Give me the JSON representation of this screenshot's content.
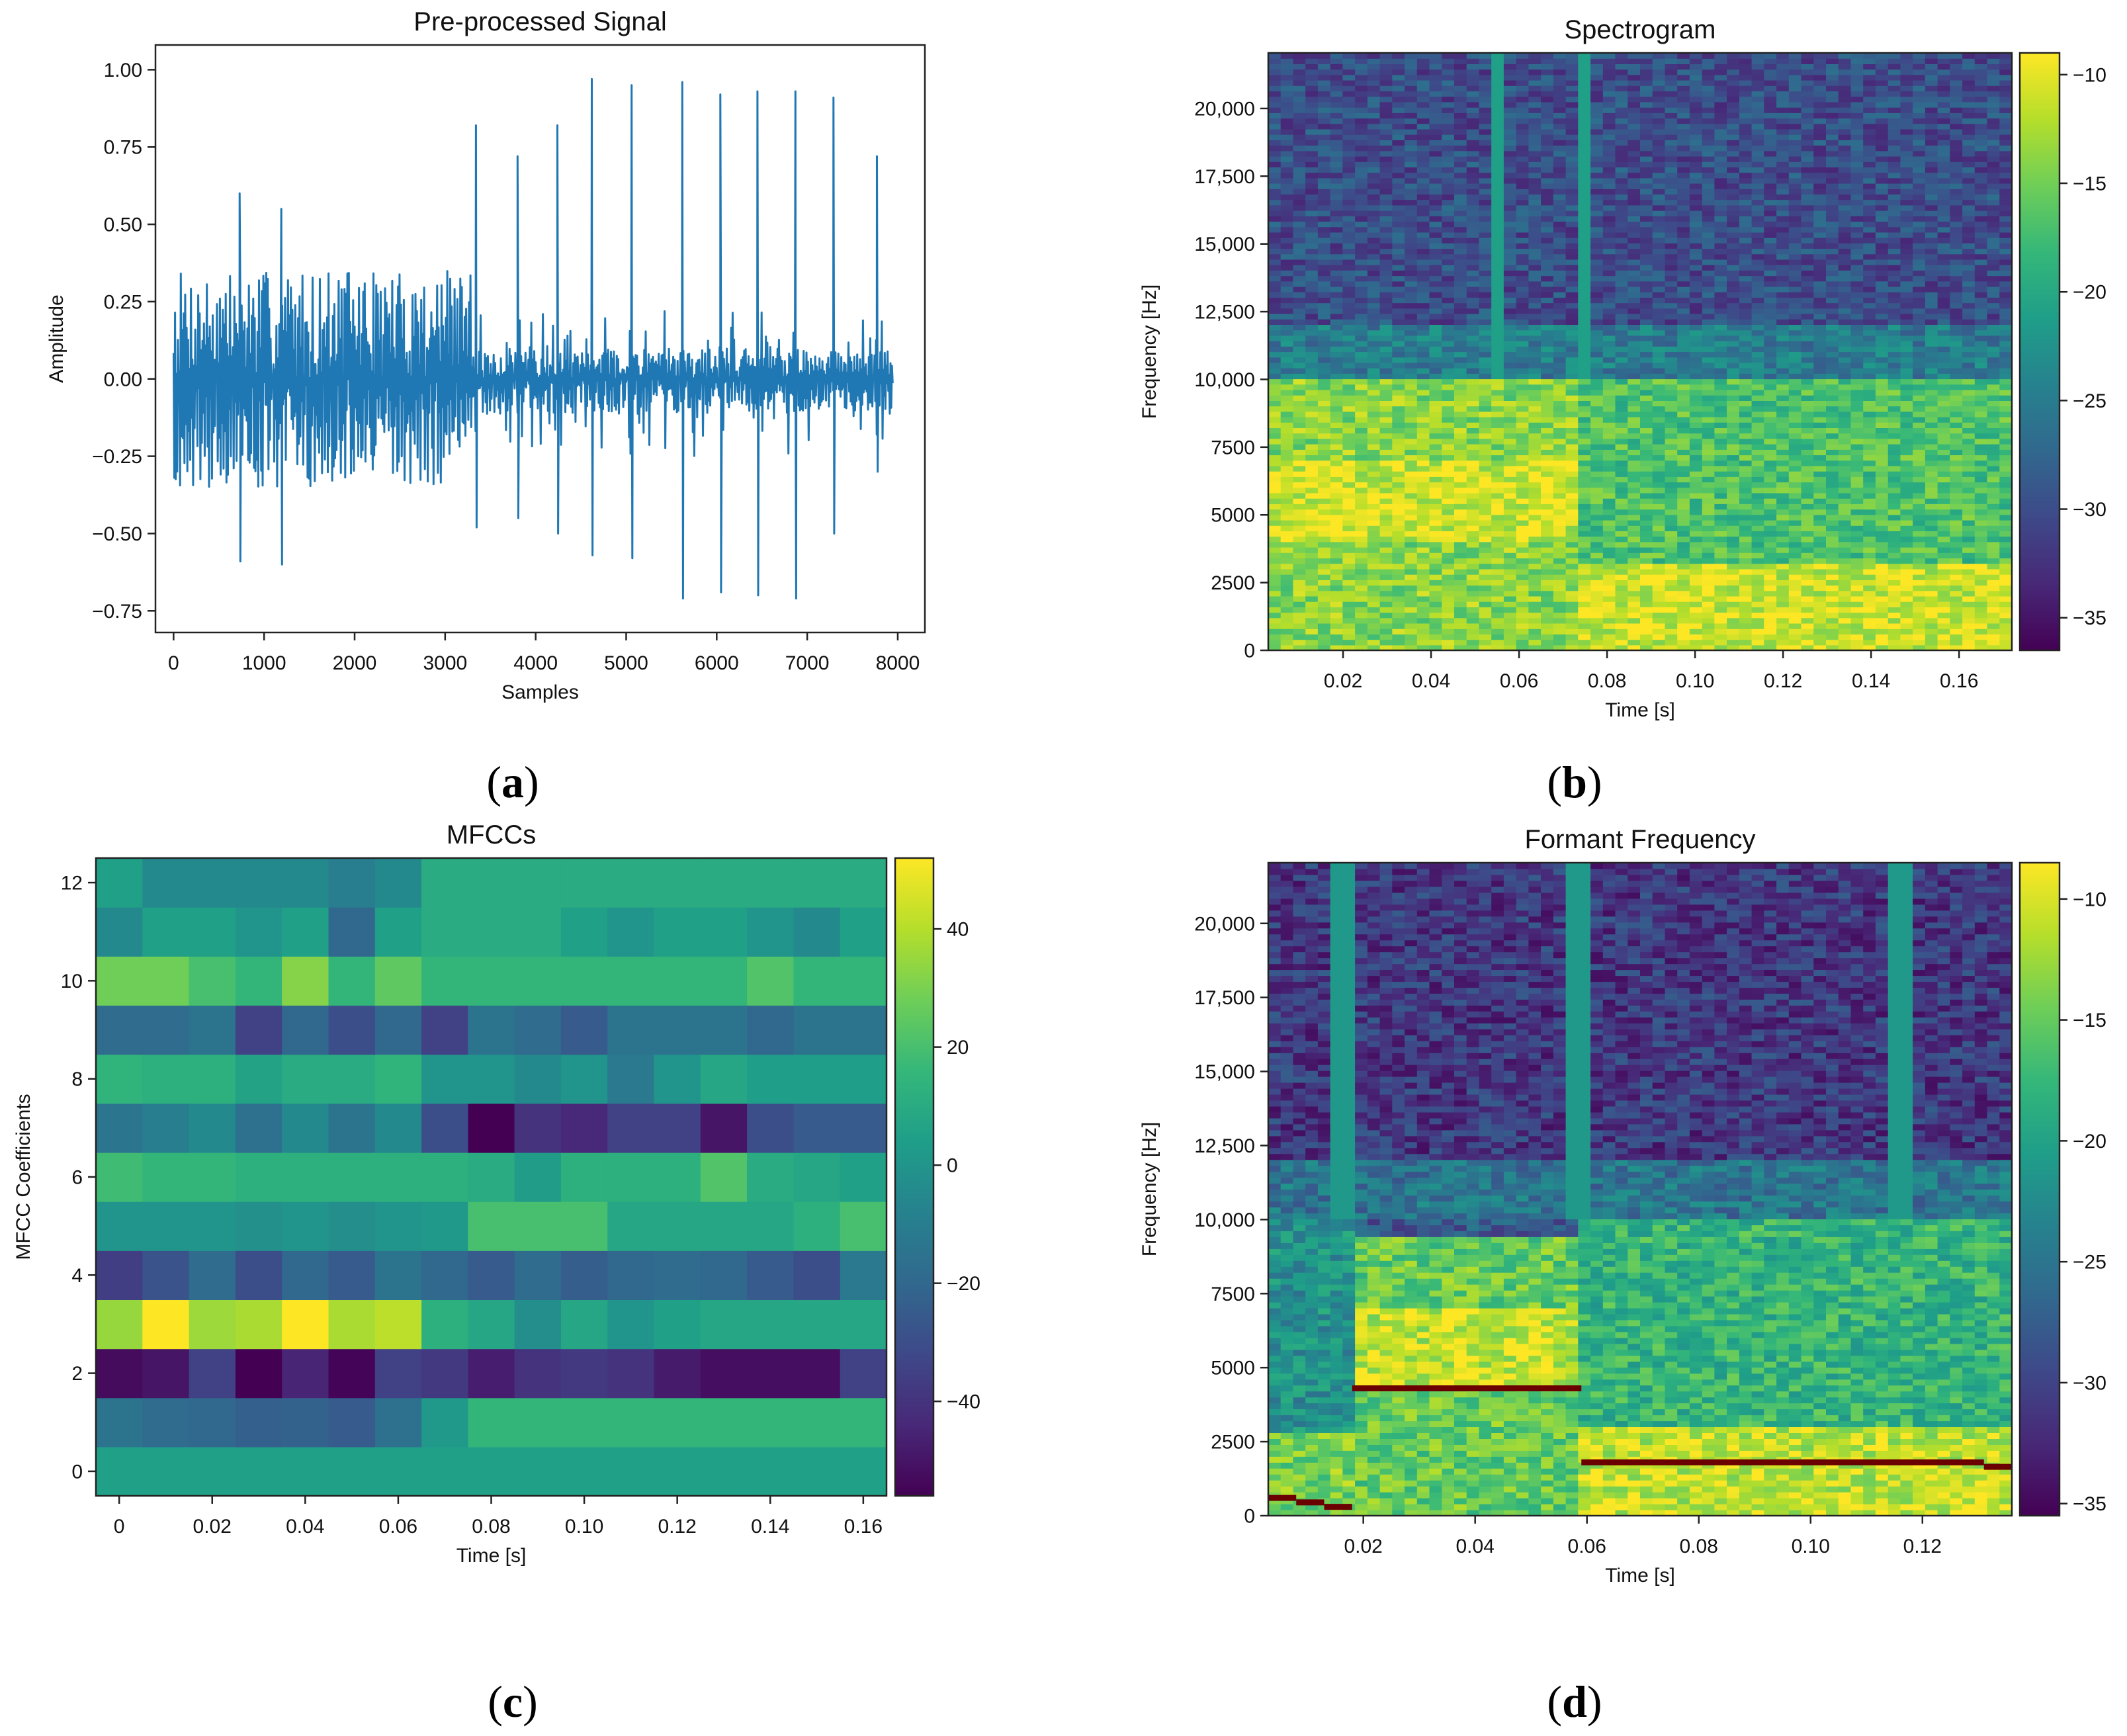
{
  "panels": {
    "a": {
      "caption": "(a)",
      "letter": "a"
    },
    "b": {
      "caption": "(b)",
      "letter": "b"
    },
    "c": {
      "caption": "(c)",
      "letter": "c"
    },
    "d": {
      "caption": "(d)",
      "letter": "d"
    }
  },
  "colors": {
    "line": "#1f77b4",
    "formant": "#6b0000",
    "viridis": [
      "#440154",
      "#482878",
      "#3e4989",
      "#31688e",
      "#26828e",
      "#1f9e89",
      "#35b779",
      "#6ece58",
      "#b5de2b",
      "#fde725"
    ]
  },
  "chart_data": [
    {
      "id": "a",
      "type": "line",
      "title": "Pre-processed Signal",
      "xlabel": "Samples",
      "ylabel": "Amplitude",
      "xlim": [
        -200,
        8300
      ],
      "ylim": [
        -0.82,
        1.08
      ],
      "xticks": [
        0,
        1000,
        2000,
        3000,
        4000,
        5000,
        6000,
        7000,
        8000
      ],
      "xtick_labels": [
        "0",
        "1000",
        "2000",
        "3000",
        "4000",
        "5000",
        "6000",
        "7000",
        "8000"
      ],
      "yticks": [
        -0.75,
        -0.5,
        -0.25,
        0.0,
        0.25,
        0.5,
        0.75,
        1.0
      ],
      "ytick_labels": [
        "−0.75",
        "−0.50",
        "−0.25",
        "0.00",
        "0.25",
        "0.50",
        "0.75",
        "1.00"
      ],
      "series": [
        {
          "name": "signal",
          "noise_segments": [
            {
              "x_start": 0,
              "x_end": 3300,
              "amplitude_max": 0.35,
              "amplitude_min": -0.35
            },
            {
              "x_start": 3300,
              "x_end": 7950,
              "amplitude_max": 0.22,
              "amplitude_min": -0.25
            }
          ],
          "peaks": [
            {
              "x": 730,
              "value": 0.6
            },
            {
              "x": 1190,
              "value": 0.55
            },
            {
              "x": 3340,
              "value": 0.82
            },
            {
              "x": 3800,
              "value": 0.72
            },
            {
              "x": 4240,
              "value": 0.82
            },
            {
              "x": 4620,
              "value": 0.97
            },
            {
              "x": 5060,
              "value": 0.95
            },
            {
              "x": 5620,
              "value": 0.96
            },
            {
              "x": 6040,
              "value": 0.92
            },
            {
              "x": 6450,
              "value": 0.93
            },
            {
              "x": 6870,
              "value": 0.93
            },
            {
              "x": 7290,
              "value": 0.91
            },
            {
              "x": 7770,
              "value": 0.72
            }
          ],
          "troughs": [
            {
              "x": 730,
              "value": -0.59
            },
            {
              "x": 1190,
              "value": -0.6
            },
            {
              "x": 3340,
              "value": -0.48
            },
            {
              "x": 3800,
              "value": -0.45
            },
            {
              "x": 4240,
              "value": -0.5
            },
            {
              "x": 4620,
              "value": -0.57
            },
            {
              "x": 5060,
              "value": -0.58
            },
            {
              "x": 5620,
              "value": -0.71
            },
            {
              "x": 6040,
              "value": -0.69
            },
            {
              "x": 6450,
              "value": -0.7
            },
            {
              "x": 6870,
              "value": -0.71
            },
            {
              "x": 7290,
              "value": -0.5
            },
            {
              "x": 7770,
              "value": -0.3
            }
          ]
        }
      ]
    },
    {
      "id": "b",
      "type": "heatmap",
      "title": "Spectrogram",
      "xlabel": "Time [s]",
      "ylabel": "Frequency [Hz]",
      "xlim": [
        0.003,
        0.172
      ],
      "ylim": [
        0,
        22050
      ],
      "xticks": [
        0.02,
        0.04,
        0.06,
        0.08,
        0.1,
        0.12,
        0.14,
        0.16
      ],
      "xtick_labels": [
        "0.02",
        "0.04",
        "0.06",
        "0.08",
        "0.10",
        "0.12",
        "0.14",
        "0.16"
      ],
      "yticks": [
        0,
        2500,
        5000,
        7500,
        10000,
        12500,
        15000,
        17500,
        20000
      ],
      "ytick_labels": [
        "0",
        "2500",
        "5000",
        "7500",
        "10,000",
        "12,500",
        "15,000",
        "17,500",
        "20,000"
      ],
      "colorbar": {
        "min": -36.5,
        "max": -9,
        "ticks": [
          -10,
          -15,
          -20,
          -25,
          -30,
          -35
        ],
        "tick_labels": [
          "−10",
          "−15",
          "−20",
          "−25",
          "−30",
          "−35"
        ]
      },
      "regions": [
        {
          "t_start": 0.003,
          "t_end": 0.073,
          "f_start": 0,
          "f_end": 10000,
          "value_db": -14
        },
        {
          "t_start": 0.003,
          "t_end": 0.073,
          "f_start": 4000,
          "f_end": 7000,
          "value_db": -11
        },
        {
          "t_start": 0.073,
          "t_end": 0.172,
          "f_start": 0,
          "f_end": 3200,
          "value_db": -11
        },
        {
          "t_start": 0.073,
          "t_end": 0.172,
          "f_start": 3200,
          "f_end": 10000,
          "value_db": -17
        },
        {
          "t_start": 0.003,
          "t_end": 0.172,
          "f_start": 10000,
          "f_end": 12000,
          "value_db": -25
        },
        {
          "t_start": 0.003,
          "t_end": 0.172,
          "f_start": 12000,
          "f_end": 22050,
          "value_db": -30
        }
      ],
      "vertical_bands": [
        {
          "t_start": 0.0525,
          "t_end": 0.0575,
          "f_start": 10000,
          "value_db": -21
        },
        {
          "t_start": 0.0725,
          "t_end": 0.0775,
          "f_start": 10000,
          "value_db": -21
        }
      ]
    },
    {
      "id": "c",
      "type": "heatmap",
      "title": "MFCCs",
      "xlabel": "Time [s]",
      "ylabel": "MFCC Coefficients",
      "xlim": [
        -0.005,
        0.165
      ],
      "ylim": [
        -0.5,
        12.5
      ],
      "xticks": [
        0,
        0.02,
        0.04,
        0.06,
        0.08,
        0.1,
        0.12,
        0.14,
        0.16
      ],
      "xtick_labels": [
        "0",
        "0.02",
        "0.04",
        "0.06",
        "0.08",
        "0.10",
        "0.12",
        "0.14",
        "0.16"
      ],
      "yticks": [
        0,
        2,
        4,
        6,
        8,
        10,
        12
      ],
      "ytick_labels": [
        "0",
        "2",
        "4",
        "6",
        "8",
        "10",
        "12"
      ],
      "colorbar": {
        "min": -56,
        "max": 52,
        "ticks": [
          40,
          20,
          0,
          -20,
          -40
        ],
        "tick_labels": [
          "40",
          "20",
          "0",
          "−20",
          "−40"
        ]
      },
      "frame_times": [
        0.0,
        0.01,
        0.02,
        0.03,
        0.04,
        0.05,
        0.06,
        0.07,
        0.08,
        0.09,
        0.1,
        0.11,
        0.12,
        0.13,
        0.14,
        0.15,
        0.16
      ],
      "values": [
        [
          5,
          5,
          5,
          5,
          5,
          5,
          5,
          5,
          5,
          5,
          5,
          5,
          5,
          5,
          5,
          5,
          5
        ],
        [
          -15,
          -18,
          -20,
          -23,
          -22,
          -25,
          -16,
          2,
          15,
          15,
          15,
          15,
          15,
          15,
          15,
          15,
          15
        ],
        [
          -53,
          -50,
          -35,
          -56,
          -45,
          -55,
          -35,
          -38,
          -47,
          -40,
          -38,
          -40,
          -48,
          -52,
          -52,
          -52,
          -35
        ],
        [
          35,
          52,
          36,
          38,
          52,
          38,
          41,
          12,
          8,
          -3,
          8,
          0,
          5,
          8,
          8,
          8,
          8
        ],
        [
          -36,
          -28,
          -18,
          -30,
          -20,
          -25,
          -15,
          -20,
          -25,
          -18,
          -24,
          -20,
          -18,
          -20,
          -25,
          -30,
          -12
        ],
        [
          0,
          0,
          0,
          -2,
          0,
          -3,
          0,
          2,
          20,
          20,
          20,
          8,
          8,
          8,
          8,
          12,
          20
        ],
        [
          18,
          15,
          15,
          12,
          12,
          12,
          12,
          12,
          10,
          3,
          12,
          12,
          12,
          22,
          10,
          8,
          5
        ],
        [
          -14,
          -10,
          -5,
          -16,
          -5,
          -15,
          -5,
          -30,
          -56,
          -40,
          -44,
          -35,
          -35,
          -50,
          -30,
          -25,
          -25
        ],
        [
          14,
          12,
          12,
          6,
          10,
          10,
          14,
          0,
          0,
          -5,
          0,
          -12,
          0,
          8,
          4,
          4,
          4
        ],
        [
          -18,
          -18,
          -15,
          -35,
          -20,
          -30,
          -20,
          -35,
          -15,
          -18,
          -25,
          -15,
          -15,
          -15,
          -20,
          -15,
          -15
        ],
        [
          28,
          28,
          20,
          15,
          32,
          15,
          25,
          15,
          15,
          15,
          15,
          15,
          15,
          15,
          22,
          15,
          15
        ],
        [
          -5,
          5,
          5,
          0,
          5,
          -20,
          5,
          10,
          10,
          10,
          5,
          0,
          5,
          5,
          0,
          -5,
          5
        ],
        [
          5,
          -5,
          -5,
          -5,
          -5,
          -10,
          -5,
          10,
          10,
          10,
          10,
          10,
          10,
          10,
          10,
          10,
          10
        ]
      ]
    },
    {
      "id": "d",
      "type": "heatmap",
      "title": "Formant Frequency",
      "xlabel": "Time [s]",
      "ylabel": "Frequency [Hz]",
      "xlim": [
        0.003,
        0.136
      ],
      "ylim": [
        0,
        22050
      ],
      "xticks": [
        0.02,
        0.04,
        0.06,
        0.08,
        0.1,
        0.12
      ],
      "xtick_labels": [
        "0.02",
        "0.04",
        "0.06",
        "0.08",
        "0.10",
        "0.12"
      ],
      "yticks": [
        0,
        2500,
        5000,
        7500,
        10000,
        12500,
        15000,
        17500,
        20000
      ],
      "ytick_labels": [
        "0",
        "2500",
        "5000",
        "7500",
        "10,000",
        "12,500",
        "15,000",
        "17,500",
        "20,000"
      ],
      "colorbar": {
        "min": -35.5,
        "max": -8.5,
        "ticks": [
          -10,
          -15,
          -20,
          -25,
          -30,
          -35
        ],
        "tick_labels": [
          "−10",
          "−15",
          "−20",
          "−25",
          "−30",
          "−35"
        ]
      },
      "regions": [
        {
          "t_start": 0.003,
          "t_end": 0.018,
          "f_start": 0,
          "f_end": 2800,
          "value_db": -14
        },
        {
          "t_start": 0.003,
          "t_end": 0.018,
          "f_start": 2800,
          "f_end": 10000,
          "value_db": -22
        },
        {
          "t_start": 0.018,
          "t_end": 0.059,
          "f_start": 0,
          "f_end": 9500,
          "value_db": -15
        },
        {
          "t_start": 0.018,
          "t_end": 0.059,
          "f_start": 4500,
          "f_end": 7000,
          "value_db": -11
        },
        {
          "t_start": 0.059,
          "t_end": 0.136,
          "f_start": 0,
          "f_end": 3000,
          "value_db": -11
        },
        {
          "t_start": 0.059,
          "t_end": 0.136,
          "f_start": 3000,
          "f_end": 10000,
          "value_db": -18
        },
        {
          "t_start": 0.003,
          "t_end": 0.136,
          "f_start": 10000,
          "f_end": 12000,
          "value_db": -25
        },
        {
          "t_start": 0.003,
          "t_end": 0.136,
          "f_start": 12000,
          "f_end": 22050,
          "value_db": -31
        }
      ],
      "vertical_bands": [
        {
          "t_start": 0.0135,
          "t_end": 0.0185,
          "f_start": 10000,
          "value_db": -21
        },
        {
          "t_start": 0.0565,
          "t_end": 0.0615,
          "f_start": 10000,
          "value_db": -21
        },
        {
          "t_start": 0.1135,
          "t_end": 0.1185,
          "f_start": 10000,
          "value_db": -21
        }
      ],
      "formant_track": [
        {
          "t_start": 0.003,
          "t_end": 0.008,
          "f": 600
        },
        {
          "t_start": 0.008,
          "t_end": 0.013,
          "f": 450
        },
        {
          "t_start": 0.013,
          "t_end": 0.018,
          "f": 300
        },
        {
          "t_start": 0.018,
          "t_end": 0.059,
          "f": 4300
        },
        {
          "t_start": 0.059,
          "t_end": 0.131,
          "f": 1800
        },
        {
          "t_start": 0.131,
          "t_end": 0.136,
          "f": 1650
        }
      ]
    }
  ]
}
